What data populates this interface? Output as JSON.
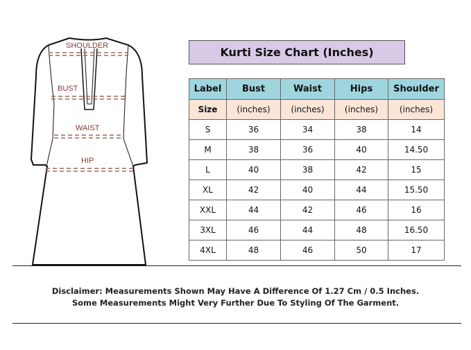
{
  "diagram": {
    "labels": [
      "SHOULDER",
      "BUST",
      "WAIST",
      "HIP"
    ],
    "dash_color": "#a0665c"
  },
  "chart": {
    "title": "Kurti Size Chart (Inches)",
    "columns": [
      "Label",
      "Bust",
      "Waist",
      "Hips",
      "Shoulder"
    ],
    "units": [
      "Size",
      "(inches)",
      "(inches)",
      "(inches)",
      "(inches)"
    ],
    "rows": [
      [
        "S",
        "36",
        "34",
        "38",
        "14"
      ],
      [
        "M",
        "38",
        "36",
        "40",
        "14.50"
      ],
      [
        "L",
        "40",
        "38",
        "42",
        "15"
      ],
      [
        "XL",
        "42",
        "40",
        "44",
        "15.50"
      ],
      [
        "XXL",
        "44",
        "42",
        "46",
        "16"
      ],
      [
        "3XL",
        "46",
        "44",
        "48",
        "16.50"
      ],
      [
        "4XL",
        "48",
        "46",
        "50",
        "17"
      ]
    ],
    "colors": {
      "title_bg": "#d8c9e6",
      "header_bg": "#9fd5df",
      "unit_bg": "#fbe5d6"
    }
  },
  "disclaimer": {
    "line1": "Disclaimer: Measurements Shown May Have A Difference Of 1.27 Cm / 0.5 Inches.",
    "line2": "Some Measurements Might Very Further Due To Styling Of The Garment."
  }
}
